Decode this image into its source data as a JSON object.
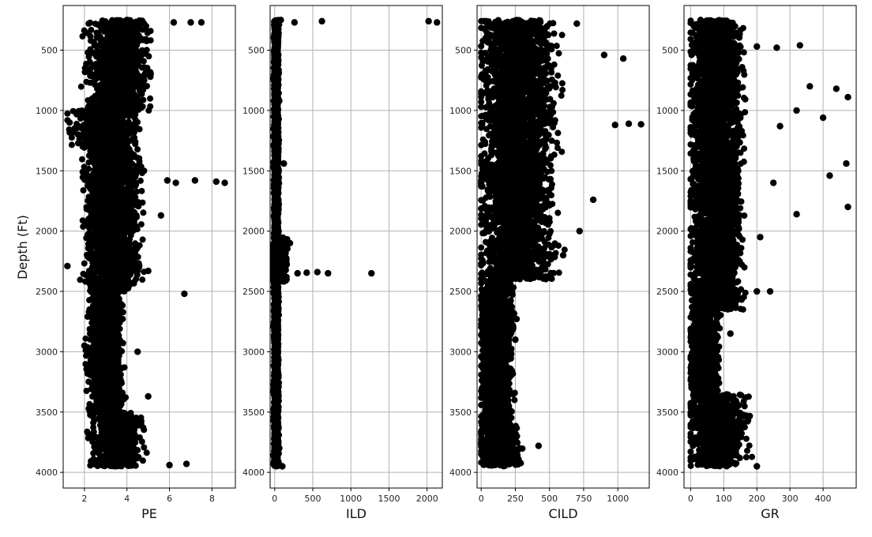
{
  "chart_data": [
    {
      "type": "scatter",
      "xlabel": "PE",
      "ylabel": "Depth (Ft)",
      "xlim": [
        1.0,
        9.1
      ],
      "ylim": [
        4130,
        130
      ],
      "y_inverted": true,
      "xticks": [
        2,
        4,
        6,
        8
      ],
      "xtick_labels": [
        "2",
        "4",
        "6",
        "8"
      ],
      "yticks": [
        500,
        1000,
        1500,
        2000,
        2500,
        3000,
        3500,
        4000
      ],
      "ytick_labels": [
        "500",
        "1000",
        "1500",
        "2000",
        "2500",
        "3000",
        "3500",
        "4000"
      ],
      "grid": true,
      "marker_color": "#000000",
      "series": [
        {
          "x": [
            4.0,
            6.2,
            7.0,
            7.5,
            2.3,
            5.1,
            1.3,
            1.7,
            4.8,
            5.9,
            6.3,
            7.2,
            8.2,
            8.6,
            2.2,
            5.6,
            1.2,
            3.0,
            5.0,
            6.7,
            2.0,
            4.5,
            3.0,
            5.0,
            2.5,
            4.1,
            3.5,
            6.0,
            6.8
          ],
          "y": [
            250,
            270,
            270,
            270,
            650,
            720,
            1100,
            1200,
            1500,
            1580,
            1600,
            1580,
            1590,
            1600,
            1900,
            1870,
            2290,
            2300,
            2330,
            2520,
            2950,
            3000,
            3160,
            3370,
            3780,
            3800,
            3920,
            3940,
            3930
          ]
        }
      ]
    },
    {
      "type": "scatter",
      "xlabel": "ILD",
      "xlim": [
        -60,
        2200
      ],
      "ylim": [
        4130,
        130
      ],
      "y_inverted": true,
      "xticks": [
        0,
        500,
        1000,
        1500,
        2000
      ],
      "xtick_labels": [
        "0",
        "500",
        "1000",
        "1500",
        "2000"
      ],
      "yticks": [
        500,
        1000,
        1500,
        2000,
        2500,
        3000,
        3500,
        4000
      ],
      "ytick_labels": [
        "500",
        "1000",
        "1500",
        "2000",
        "2500",
        "3000",
        "3500",
        "4000"
      ],
      "grid": true,
      "marker_color": "#000000",
      "series": [
        {
          "x": [
            20,
            80,
            260,
            620,
            2020,
            2130,
            60,
            200,
            300,
            420,
            560,
            700,
            1270,
            120,
            60,
            100
          ],
          "y": [
            260,
            250,
            270,
            260,
            260,
            270,
            920,
            2100,
            2350,
            2345,
            2340,
            2350,
            2350,
            1440,
            3800,
            3950
          ]
        }
      ]
    },
    {
      "type": "scatter",
      "xlabel": "CILD",
      "xlim": [
        -30,
        1230
      ],
      "ylim": [
        4130,
        130
      ],
      "y_inverted": true,
      "xticks": [
        0,
        250,
        500,
        750,
        1000
      ],
      "xtick_labels": [
        "0",
        "250",
        "500",
        "750",
        "1000"
      ],
      "yticks": [
        500,
        1000,
        1500,
        2000,
        2500,
        3000,
        3500,
        4000
      ],
      "ytick_labels": [
        "500",
        "1000",
        "1500",
        "2000",
        "2500",
        "3000",
        "3500",
        "4000"
      ],
      "grid": true,
      "marker_color": "#000000",
      "series": [
        {
          "x": [
            20,
            700,
            900,
            1040,
            980,
            1080,
            1170,
            820,
            720,
            600,
            420,
            250,
            150,
            120,
            70,
            420,
            200
          ],
          "y": [
            260,
            280,
            540,
            570,
            1120,
            1110,
            1115,
            1740,
            2000,
            2200,
            2360,
            2900,
            3100,
            3360,
            3520,
            3780,
            3930
          ]
        }
      ]
    },
    {
      "type": "scatter",
      "xlabel": "GR",
      "xlim": [
        -20,
        500
      ],
      "ylim": [
        4130,
        130
      ],
      "y_inverted": true,
      "xticks": [
        0,
        100,
        200,
        300,
        400
      ],
      "xtick_labels": [
        "0",
        "100",
        "200",
        "300",
        "400"
      ],
      "yticks": [
        500,
        1000,
        1500,
        2000,
        2500,
        3000,
        3500,
        4000
      ],
      "ytick_labels": [
        "500",
        "1000",
        "1500",
        "2000",
        "2500",
        "3000",
        "3500",
        "4000"
      ],
      "grid": true,
      "marker_color": "#000000",
      "series": [
        {
          "x": [
            30,
            200,
            260,
            330,
            360,
            440,
            475,
            400,
            320,
            270,
            470,
            420,
            475,
            250,
            320,
            210,
            240,
            200,
            80,
            120,
            30,
            200
          ],
          "y": [
            250,
            470,
            480,
            460,
            800,
            820,
            890,
            1060,
            1000,
            1130,
            1440,
            1540,
            1800,
            1600,
            1860,
            2050,
            2500,
            2500,
            2990,
            2850,
            3200,
            3950
          ]
        }
      ]
    }
  ]
}
